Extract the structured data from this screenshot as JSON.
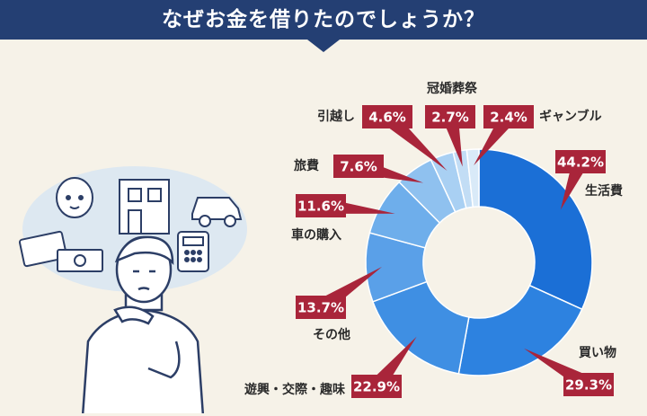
{
  "title": "なぜお金を借りたのでしょうか？",
  "colors": {
    "banner": "#243f73",
    "background": "#f6f2e8",
    "label_box": "#a9253a",
    "segment_dark": "#1b6fd6",
    "segment_light": "#d9eaf8"
  },
  "illustration": {
    "icons": [
      "baby-face-icon",
      "house-icon",
      "car-icon",
      "credit-card-icon",
      "banknote-icon",
      "calculator-icon",
      "thinking-man"
    ]
  },
  "chart_data": {
    "type": "donut",
    "title": "",
    "unit": "%",
    "categories": [
      "生活費",
      "買い物",
      "遊興・交際・趣味",
      "その他",
      "車の購入",
      "旅費",
      "引越し",
      "冠婚葬祭",
      "ギャンブル"
    ],
    "values": [
      44.2,
      29.3,
      22.9,
      13.7,
      11.6,
      7.6,
      4.6,
      2.7,
      2.4
    ],
    "value_labels": [
      "44.2%",
      "29.3%",
      "22.9%",
      "13.7%",
      "11.6%",
      "7.6%",
      "4.6%",
      "2.7%",
      "2.4%"
    ],
    "colors": [
      "#1b6fd6",
      "#2d82e0",
      "#3f8fe3",
      "#5aa0e8",
      "#6eaeeb",
      "#8fc1ef",
      "#a9d0f3",
      "#c2ddf5",
      "#d9eaf8"
    ],
    "legend": "none"
  }
}
